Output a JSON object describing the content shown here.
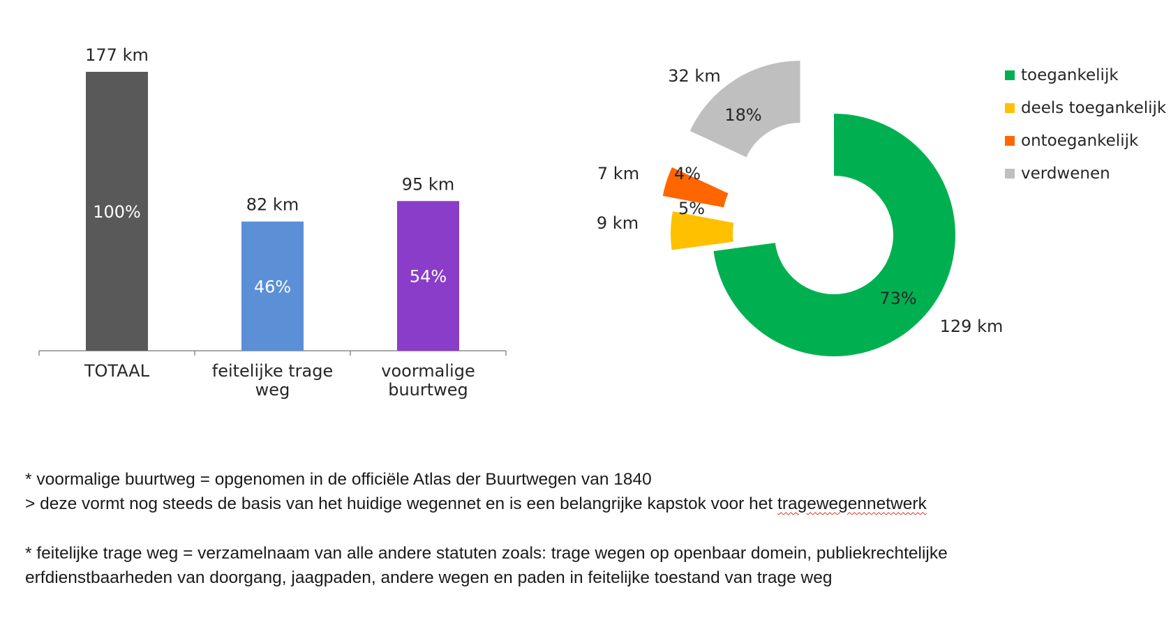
{
  "chart_data": [
    {
      "type": "bar",
      "categories": [
        "TOTAAL",
        "feitelijke trage weg",
        "voormalige buurtweg"
      ],
      "category_lines": [
        [
          "TOTAAL"
        ],
        [
          "feitelijke trage",
          "weg"
        ],
        [
          "voormalige",
          "buurtweg"
        ]
      ],
      "values": [
        177,
        82,
        95
      ],
      "value_labels": [
        "177 km",
        "82 km",
        "95 km"
      ],
      "percent_labels": [
        "100%",
        "46%",
        "54%"
      ],
      "colors": [
        "#595959",
        "#5b8fd6",
        "#8a3dc8"
      ],
      "ylim": [
        0,
        177
      ],
      "grid": false,
      "legend": "none"
    },
    {
      "type": "pie",
      "variant": "exploded-donut",
      "labels": [
        "toegankelijk",
        "deels toegankelijk",
        "ontoegankelijk",
        "verdwenen"
      ],
      "values": [
        129,
        9,
        7,
        32
      ],
      "value_labels": [
        "129 km",
        "9 km",
        "7 km",
        "32 km"
      ],
      "percent_labels": [
        "73%",
        "5%",
        "4%",
        "18%"
      ],
      "colors": [
        "#00b050",
        "#ffc000",
        "#ff6600",
        "#bfbfbf"
      ],
      "start_angle_deg": 0,
      "legend": "right"
    }
  ],
  "legend": {
    "items": [
      {
        "label": "toegankelijk",
        "color": "#00b050"
      },
      {
        "label": "deels toegankelijk",
        "color": "#ffc000"
      },
      {
        "label": "ontoegankelijk",
        "color": "#ff6600"
      },
      {
        "label": "verdwenen",
        "color": "#bfbfbf"
      }
    ]
  },
  "notes": {
    "line1": "* voormalige buurtweg = opgenomen in de officiële Atlas der Buurtwegen van 1840",
    "line2_prefix": "> deze vormt nog steeds de basis van het huidige wegennet en is een belangrijke kapstok voor het ",
    "line2_underlined": "tragewegennetwerk",
    "line3": "* feitelijke trage weg = verzamelnaam van alle andere statuten zoals: trage wegen op openbaar domein, publiekrechtelijke",
    "line4": "erfdienstbaarheden van doorgang, jaagpaden, andere wegen en paden in feitelijke toestand van trage weg"
  }
}
